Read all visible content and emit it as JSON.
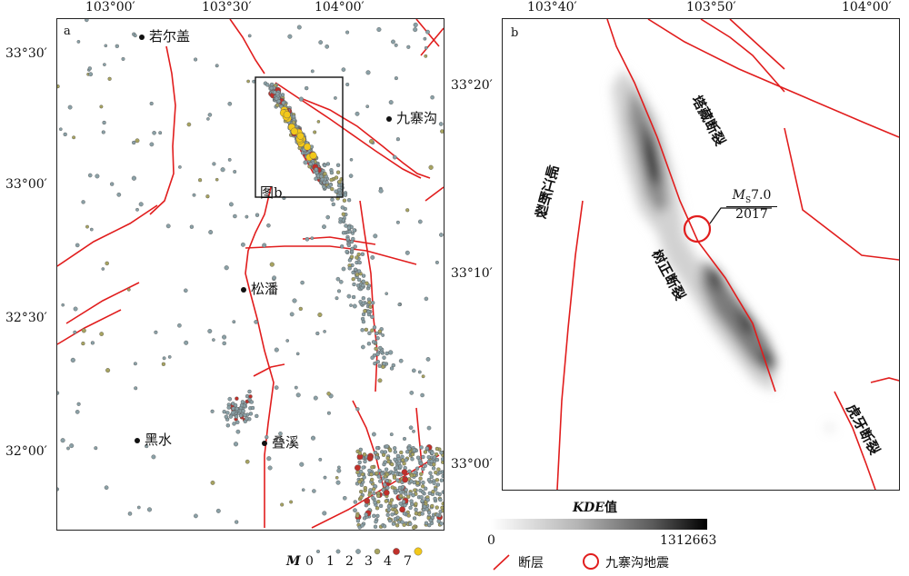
{
  "panel_a": {
    "letter": "a",
    "top_ticks": [
      "103°00′",
      "103°30′",
      "104°00′"
    ],
    "left_ticks": [
      "33°30′",
      "33°00′",
      "32°30′",
      "32°00′"
    ],
    "places": {
      "ruoergai": "若尔盖",
      "jiuzhaigou": "九寨沟",
      "songpan": "松潘",
      "heishui": "黑水",
      "diexi": "叠溪"
    },
    "box_label": "图b",
    "legend": {
      "title": "M",
      "classes": [
        "0",
        "1",
        "2",
        "3",
        "4",
        "7"
      ]
    }
  },
  "panel_b": {
    "letter": "b",
    "top_ticks": [
      "103°40′",
      "103°50′",
      "104°00′"
    ],
    "left_ticks": [
      "33°20′",
      "33°10′",
      "33°00′"
    ],
    "faults": {
      "tazang": "塔藏断裂",
      "minjiang": "岷江断裂",
      "shuzheng": "树正断裂",
      "huya": "虎牙断裂"
    },
    "epicenter_label": {
      "magnitude_prefix": "M",
      "magnitude_sub": "S",
      "magnitude_value": "7.0",
      "year": "2017"
    },
    "kde": {
      "title_italic": "KDE",
      "title_suffix": "值",
      "min": "0",
      "max": "1312663"
    },
    "legend": {
      "fault": "断层",
      "epicenter": "九寨沟地震"
    }
  },
  "colors": {
    "fault": "#e11d1d",
    "grey_point": "#8aa0a6",
    "olive_point": "#a7a360",
    "red_point": "#c0302a",
    "yellow_point": "#f2c81a",
    "kde_dark": "#111111"
  }
}
